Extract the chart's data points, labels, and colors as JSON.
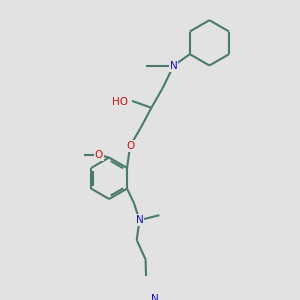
{
  "bg_color": "#e2e2e2",
  "bond_color": "#4a7a6a",
  "bond_width": 1.5,
  "N_color": "#1010cc",
  "O_color": "#cc1010",
  "fig_bg": "#e2e2e2",
  "xlim": [
    0,
    10
  ],
  "ylim": [
    0,
    10
  ]
}
